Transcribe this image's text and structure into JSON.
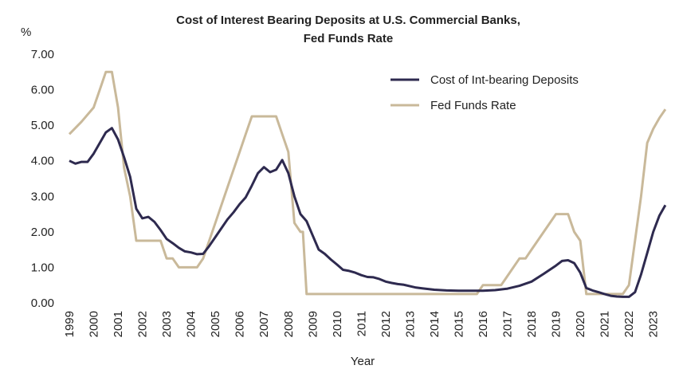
{
  "chart_data": {
    "type": "line",
    "title": [
      "Cost of Interest Bearing Deposits at U.S. Commercial Banks,",
      "Fed Funds Rate"
    ],
    "y_label": "%",
    "x_label": "Year",
    "xlim": [
      1999,
      2023.6
    ],
    "ylim": [
      0,
      7
    ],
    "xticks": [
      1999,
      2000,
      2001,
      2002,
      2003,
      2004,
      2005,
      2006,
      2007,
      2008,
      2009,
      2010,
      2011,
      2012,
      2013,
      2014,
      2015,
      2016,
      2017,
      2018,
      2019,
      2020,
      2021,
      2022,
      2023
    ],
    "yticks": [
      {
        "value": 0,
        "label": "0.00"
      },
      {
        "value": 1,
        "label": "1.00"
      },
      {
        "value": 2,
        "label": "2.00"
      },
      {
        "value": 3,
        "label": "3.00"
      },
      {
        "value": 4,
        "label": "4.00"
      },
      {
        "value": 5,
        "label": "5.00"
      },
      {
        "value": 6,
        "label": "6.00"
      },
      {
        "value": 7,
        "label": "7.00"
      }
    ],
    "legend": "upper right",
    "grid": false,
    "series": [
      {
        "name": "Cost of Int-bearing Deposits",
        "color": "#2e2a4f",
        "x": [
          1999.0,
          1999.25,
          1999.5,
          1999.75,
          2000.0,
          2000.25,
          2000.5,
          2000.75,
          2001.0,
          2001.25,
          2001.5,
          2001.75,
          2002.0,
          2002.25,
          2002.5,
          2002.75,
          2003.0,
          2003.25,
          2003.5,
          2003.75,
          2004.0,
          2004.25,
          2004.5,
          2004.75,
          2005.0,
          2005.25,
          2005.5,
          2005.75,
          2006.0,
          2006.25,
          2006.5,
          2006.75,
          2007.0,
          2007.25,
          2007.5,
          2007.75,
          2008.0,
          2008.25,
          2008.5,
          2008.75,
          2009.0,
          2009.25,
          2009.5,
          2009.75,
          2010.0,
          2010.25,
          2010.5,
          2010.75,
          2011.0,
          2011.25,
          2011.5,
          2011.75,
          2012.0,
          2012.25,
          2012.5,
          2012.75,
          2013.0,
          2013.25,
          2013.5,
          2013.75,
          2014.0,
          2014.5,
          2015.0,
          2015.5,
          2016.0,
          2016.5,
          2017.0,
          2017.5,
          2018.0,
          2018.5,
          2019.0,
          2019.25,
          2019.5,
          2019.75,
          2020.0,
          2020.25,
          2020.5,
          2020.75,
          2021.0,
          2021.25,
          2021.5,
          2021.75,
          2022.0,
          2022.25,
          2022.5,
          2022.75,
          2023.0,
          2023.25,
          2023.5
        ],
        "values": [
          4.0,
          3.92,
          3.97,
          3.97,
          4.2,
          4.5,
          4.8,
          4.92,
          4.6,
          4.1,
          3.55,
          2.65,
          2.38,
          2.42,
          2.28,
          2.05,
          1.8,
          1.68,
          1.55,
          1.45,
          1.42,
          1.37,
          1.38,
          1.6,
          1.85,
          2.1,
          2.35,
          2.55,
          2.78,
          2.97,
          3.3,
          3.65,
          3.82,
          3.68,
          3.75,
          4.02,
          3.65,
          3.0,
          2.5,
          2.3,
          1.9,
          1.5,
          1.38,
          1.22,
          1.08,
          0.93,
          0.9,
          0.85,
          0.78,
          0.73,
          0.72,
          0.67,
          0.6,
          0.56,
          0.53,
          0.51,
          0.47,
          0.43,
          0.41,
          0.39,
          0.37,
          0.35,
          0.34,
          0.34,
          0.34,
          0.36,
          0.4,
          0.48,
          0.6,
          0.82,
          1.05,
          1.18,
          1.2,
          1.12,
          0.85,
          0.42,
          0.35,
          0.3,
          0.25,
          0.2,
          0.18,
          0.17,
          0.17,
          0.3,
          0.8,
          1.4,
          2.0,
          2.45,
          2.75
        ]
      },
      {
        "name": "Fed Funds Rate",
        "color": "#c9b99a",
        "x": [
          1999.0,
          1999.5,
          2000.0,
          2000.25,
          2000.5,
          2000.75,
          2001.0,
          2001.25,
          2001.5,
          2001.75,
          2002.0,
          2002.5,
          2002.75,
          2003.0,
          2003.25,
          2003.5,
          2004.0,
          2004.25,
          2004.5,
          2005.0,
          2005.5,
          2006.0,
          2006.25,
          2006.5,
          2007.0,
          2007.5,
          2007.75,
          2008.0,
          2008.25,
          2008.5,
          2008.6,
          2008.75,
          2015.75,
          2016.0,
          2016.75,
          2017.0,
          2017.5,
          2017.75,
          2018.0,
          2018.5,
          2019.0,
          2019.5,
          2019.75,
          2020.0,
          2020.25,
          2021.0,
          2021.75,
          2022.0,
          2022.25,
          2022.5,
          2022.75,
          2023.0,
          2023.25,
          2023.5
        ],
        "values": [
          4.75,
          5.1,
          5.5,
          6.0,
          6.5,
          6.5,
          5.5,
          3.8,
          3.0,
          1.75,
          1.75,
          1.75,
          1.75,
          1.25,
          1.25,
          1.0,
          1.0,
          1.0,
          1.25,
          2.25,
          3.25,
          4.25,
          4.75,
          5.25,
          5.25,
          5.25,
          4.75,
          4.25,
          2.25,
          2.0,
          2.0,
          0.25,
          0.25,
          0.5,
          0.5,
          0.75,
          1.25,
          1.25,
          1.5,
          2.0,
          2.5,
          2.5,
          2.0,
          1.75,
          0.25,
          0.25,
          0.25,
          0.5,
          1.75,
          3.0,
          4.5,
          4.9,
          5.2,
          5.45
        ]
      }
    ]
  }
}
